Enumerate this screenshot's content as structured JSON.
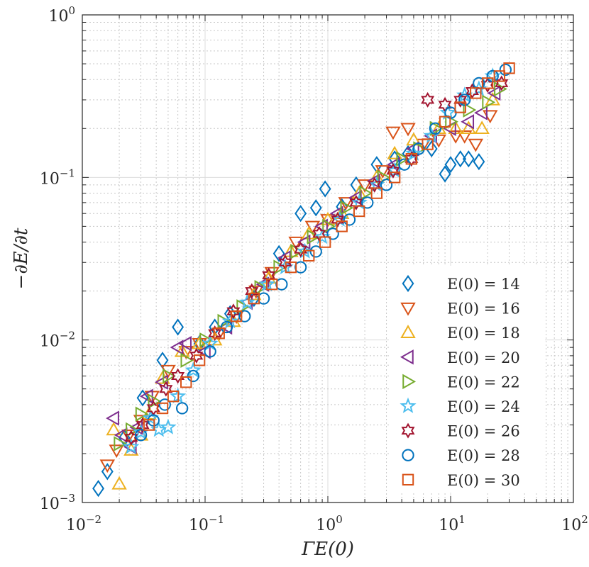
{
  "chart_data": {
    "type": "scatter",
    "title": "",
    "xlabel": "ΓE(0)",
    "ylabel": "−∂E/∂t",
    "xscale": "log",
    "yscale": "log",
    "xlim": [
      0.01,
      100
    ],
    "ylim": [
      0.001,
      1
    ],
    "grid": true,
    "legend_position": "bottom-right",
    "x_ticks": [
      {
        "base": "10",
        "exp": "−2",
        "value": 0.01
      },
      {
        "base": "10",
        "exp": "−1",
        "value": 0.1
      },
      {
        "base": "10",
        "exp": "0",
        "value": 1
      },
      {
        "base": "10",
        "exp": "1",
        "value": 10
      },
      {
        "base": "10",
        "exp": "2",
        "value": 100
      }
    ],
    "y_ticks": [
      {
        "base": "10",
        "exp": "−3",
        "value": 0.001
      },
      {
        "base": "10",
        "exp": "−2",
        "value": 0.01
      },
      {
        "base": "10",
        "exp": "−1",
        "value": 0.1
      },
      {
        "base": "10",
        "exp": "0",
        "value": 1
      }
    ],
    "series": [
      {
        "name": "E(0) = 14",
        "marker": "diamond",
        "color": "#0072BD",
        "points": [
          [
            0.0135,
            0.00122
          ],
          [
            0.016,
            0.00155
          ],
          [
            0.022,
            0.0025
          ],
          [
            0.031,
            0.0044
          ],
          [
            0.045,
            0.0075
          ],
          [
            0.06,
            0.012
          ],
          [
            0.09,
            0.0095
          ],
          [
            0.12,
            0.012
          ],
          [
            0.16,
            0.0145
          ],
          [
            0.25,
            0.018
          ],
          [
            0.4,
            0.034
          ],
          [
            0.6,
            0.06
          ],
          [
            0.8,
            0.065
          ],
          [
            0.95,
            0.085
          ],
          [
            1.3,
            0.066
          ],
          [
            1.7,
            0.09
          ],
          [
            2.5,
            0.12
          ],
          [
            3.5,
            0.13
          ],
          [
            4.5,
            0.14
          ],
          [
            7,
            0.15
          ],
          [
            9,
            0.105
          ],
          [
            10,
            0.12
          ],
          [
            12,
            0.13
          ],
          [
            14,
            0.13
          ],
          [
            17,
            0.125
          ]
        ]
      },
      {
        "name": "E(0) = 16",
        "marker": "triangle-down",
        "color": "#D95319",
        "points": [
          [
            0.016,
            0.0017
          ],
          [
            0.019,
            0.0021
          ],
          [
            0.024,
            0.0026
          ],
          [
            0.03,
            0.0032
          ],
          [
            0.037,
            0.0045
          ],
          [
            0.05,
            0.0065
          ],
          [
            0.07,
            0.0085
          ],
          [
            0.09,
            0.0095
          ],
          [
            0.13,
            0.011
          ],
          [
            0.18,
            0.014
          ],
          [
            0.26,
            0.02
          ],
          [
            0.35,
            0.026
          ],
          [
            0.55,
            0.04
          ],
          [
            0.75,
            0.05
          ],
          [
            1.0,
            0.055
          ],
          [
            1.4,
            0.07
          ],
          [
            2.0,
            0.09
          ],
          [
            2.8,
            0.11
          ],
          [
            3.4,
            0.19
          ],
          [
            4.5,
            0.2
          ],
          [
            6,
            0.16
          ],
          [
            8,
            0.17
          ],
          [
            11,
            0.18
          ],
          [
            13,
            0.18
          ],
          [
            16,
            0.16
          ],
          [
            21,
            0.24
          ]
        ]
      },
      {
        "name": "E(0) = 18",
        "marker": "triangle-up",
        "color": "#EDB120",
        "points": [
          [
            0.018,
            0.0028
          ],
          [
            0.02,
            0.0013
          ],
          [
            0.025,
            0.0021
          ],
          [
            0.03,
            0.0026
          ],
          [
            0.035,
            0.0035
          ],
          [
            0.045,
            0.0058
          ],
          [
            0.065,
            0.0085
          ],
          [
            0.09,
            0.0095
          ],
          [
            0.12,
            0.01
          ],
          [
            0.17,
            0.013
          ],
          [
            0.25,
            0.019
          ],
          [
            0.33,
            0.024
          ],
          [
            0.5,
            0.035
          ],
          [
            0.7,
            0.045
          ],
          [
            1.0,
            0.055
          ],
          [
            1.3,
            0.06
          ],
          [
            1.8,
            0.08
          ],
          [
            2.5,
            0.1
          ],
          [
            3.5,
            0.14
          ],
          [
            5,
            0.17
          ],
          [
            8,
            0.2
          ],
          [
            11,
            0.2
          ],
          [
            14,
            0.2
          ],
          [
            18,
            0.2
          ],
          [
            22,
            0.3
          ]
        ]
      },
      {
        "name": "E(0) = 20",
        "marker": "triangle-left",
        "color": "#7E2F8E",
        "points": [
          [
            0.018,
            0.0033
          ],
          [
            0.021,
            0.0026
          ],
          [
            0.025,
            0.0022
          ],
          [
            0.028,
            0.0029
          ],
          [
            0.034,
            0.0045
          ],
          [
            0.045,
            0.0055
          ],
          [
            0.06,
            0.009
          ],
          [
            0.07,
            0.0095
          ],
          [
            0.1,
            0.0085
          ],
          [
            0.15,
            0.012
          ],
          [
            0.22,
            0.017
          ],
          [
            0.3,
            0.022
          ],
          [
            0.45,
            0.032
          ],
          [
            0.65,
            0.04
          ],
          [
            0.9,
            0.05
          ],
          [
            1.2,
            0.06
          ],
          [
            1.7,
            0.075
          ],
          [
            2.4,
            0.095
          ],
          [
            3.5,
            0.12
          ],
          [
            5,
            0.15
          ],
          [
            7,
            0.18
          ],
          [
            10,
            0.2
          ],
          [
            14,
            0.22
          ],
          [
            18,
            0.25
          ],
          [
            23,
            0.33
          ]
        ]
      },
      {
        "name": "E(0) = 22",
        "marker": "triangle-right",
        "color": "#77AC30",
        "points": [
          [
            0.02,
            0.0023
          ],
          [
            0.025,
            0.0028
          ],
          [
            0.03,
            0.0035
          ],
          [
            0.038,
            0.0042
          ],
          [
            0.05,
            0.006
          ],
          [
            0.07,
            0.0075
          ],
          [
            0.1,
            0.01
          ],
          [
            0.14,
            0.013
          ],
          [
            0.2,
            0.016
          ],
          [
            0.28,
            0.021
          ],
          [
            0.4,
            0.028
          ],
          [
            0.55,
            0.035
          ],
          [
            0.75,
            0.043
          ],
          [
            1.0,
            0.05
          ],
          [
            1.4,
            0.065
          ],
          [
            2.0,
            0.08
          ],
          [
            2.8,
            0.1
          ],
          [
            4,
            0.13
          ],
          [
            5.5,
            0.15
          ],
          [
            7.5,
            0.2
          ],
          [
            10,
            0.22
          ],
          [
            14,
            0.26
          ],
          [
            20,
            0.29
          ],
          [
            25,
            0.35
          ]
        ]
      },
      {
        "name": "E(0) = 24",
        "marker": "star",
        "color": "#4DBEEE",
        "points": [
          [
            0.025,
            0.0022
          ],
          [
            0.03,
            0.0027
          ],
          [
            0.036,
            0.0033
          ],
          [
            0.042,
            0.0028
          ],
          [
            0.05,
            0.0029
          ],
          [
            0.06,
            0.0045
          ],
          [
            0.08,
            0.0065
          ],
          [
            0.11,
            0.0095
          ],
          [
            0.16,
            0.013
          ],
          [
            0.22,
            0.017
          ],
          [
            0.32,
            0.022
          ],
          [
            0.45,
            0.028
          ],
          [
            0.65,
            0.035
          ],
          [
            0.9,
            0.043
          ],
          [
            1.25,
            0.055
          ],
          [
            1.8,
            0.07
          ],
          [
            2.5,
            0.09
          ],
          [
            3.5,
            0.11
          ],
          [
            5,
            0.14
          ],
          [
            7,
            0.18
          ],
          [
            9.5,
            0.25
          ],
          [
            13,
            0.32
          ],
          [
            17,
            0.35
          ],
          [
            22,
            0.42
          ]
        ]
      },
      {
        "name": "E(0) = 26",
        "marker": "hexagram",
        "color": "#A2142F",
        "points": [
          [
            0.025,
            0.0025
          ],
          [
            0.031,
            0.003
          ],
          [
            0.038,
            0.0038
          ],
          [
            0.048,
            0.005
          ],
          [
            0.06,
            0.006
          ],
          [
            0.085,
            0.008
          ],
          [
            0.12,
            0.011
          ],
          [
            0.17,
            0.015
          ],
          [
            0.24,
            0.02
          ],
          [
            0.33,
            0.025
          ],
          [
            0.45,
            0.03
          ],
          [
            0.6,
            0.036
          ],
          [
            0.85,
            0.045
          ],
          [
            1.2,
            0.055
          ],
          [
            1.7,
            0.07
          ],
          [
            2.4,
            0.09
          ],
          [
            3.4,
            0.11
          ],
          [
            4.8,
            0.13
          ],
          [
            6.5,
            0.3
          ],
          [
            9,
            0.28
          ],
          [
            12,
            0.3
          ],
          [
            15,
            0.34
          ],
          [
            20,
            0.37
          ],
          [
            26,
            0.38
          ]
        ]
      },
      {
        "name": "E(0) = 28",
        "marker": "circle",
        "color": "#0072BD",
        "points": [
          [
            0.03,
            0.0026
          ],
          [
            0.038,
            0.0032
          ],
          [
            0.047,
            0.004
          ],
          [
            0.065,
            0.0038
          ],
          [
            0.08,
            0.006
          ],
          [
            0.11,
            0.0085
          ],
          [
            0.15,
            0.012
          ],
          [
            0.21,
            0.014
          ],
          [
            0.3,
            0.018
          ],
          [
            0.42,
            0.022
          ],
          [
            0.6,
            0.028
          ],
          [
            0.8,
            0.035
          ],
          [
            1.1,
            0.045
          ],
          [
            1.5,
            0.055
          ],
          [
            2.1,
            0.07
          ],
          [
            3,
            0.09
          ],
          [
            4.2,
            0.12
          ],
          [
            5.5,
            0.15
          ],
          [
            7.5,
            0.2
          ],
          [
            10,
            0.25
          ],
          [
            13,
            0.3
          ],
          [
            17,
            0.38
          ],
          [
            22,
            0.42
          ],
          [
            28,
            0.46
          ]
        ]
      },
      {
        "name": "E(0) = 30",
        "marker": "square",
        "color": "#D95319",
        "points": [
          [
            0.035,
            0.003
          ],
          [
            0.045,
            0.0038
          ],
          [
            0.055,
            0.0045
          ],
          [
            0.07,
            0.0055
          ],
          [
            0.09,
            0.0075
          ],
          [
            0.13,
            0.011
          ],
          [
            0.18,
            0.014
          ],
          [
            0.25,
            0.018
          ],
          [
            0.35,
            0.022
          ],
          [
            0.5,
            0.028
          ],
          [
            0.7,
            0.033
          ],
          [
            0.95,
            0.04
          ],
          [
            1.3,
            0.05
          ],
          [
            1.8,
            0.062
          ],
          [
            2.5,
            0.08
          ],
          [
            3.5,
            0.1
          ],
          [
            4.8,
            0.13
          ],
          [
            6.5,
            0.16
          ],
          [
            9,
            0.22
          ],
          [
            12,
            0.27
          ],
          [
            16,
            0.33
          ],
          [
            20,
            0.38
          ],
          [
            25,
            0.42
          ],
          [
            30,
            0.47
          ]
        ]
      }
    ]
  }
}
